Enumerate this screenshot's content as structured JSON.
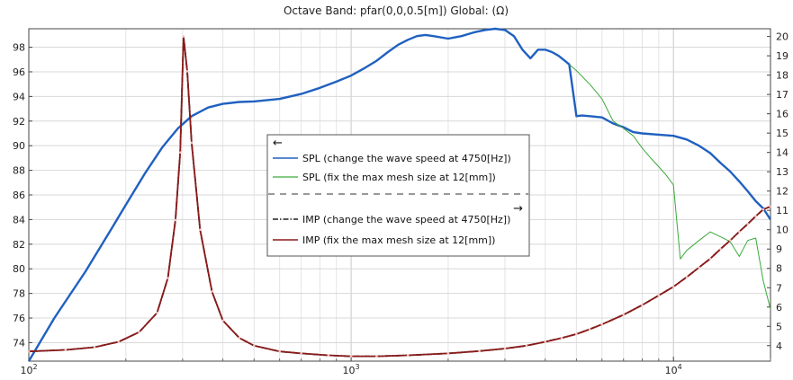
{
  "chart_data": {
    "type": "line",
    "title": "Octave Band: pfar(0,0,0.5[m])  Global:  (Ω)",
    "x_scale": "log",
    "xlim": [
      100,
      20000
    ],
    "x_ticks": [
      {
        "value": 100,
        "base": "10",
        "exp": "2"
      },
      {
        "value": 1000,
        "base": "10",
        "exp": "3"
      },
      {
        "value": 10000,
        "base": "10",
        "exp": "4"
      }
    ],
    "y_left": {
      "lim": [
        72.5,
        99.5
      ],
      "ticks": [
        74,
        76,
        78,
        80,
        82,
        84,
        86,
        88,
        90,
        92,
        94,
        96,
        98
      ]
    },
    "y_right": {
      "lim": [
        3.2,
        20.4
      ],
      "ticks": [
        4,
        5,
        6,
        7,
        8,
        9,
        10,
        11,
        12,
        13,
        14,
        15,
        16,
        17,
        18,
        19,
        20
      ]
    },
    "grid": true,
    "legend": {
      "placement": "center",
      "arrow_left": "←",
      "arrow_right": "→",
      "entries": [
        "SPL (change the wave speed at 4750[Hz])",
        "SPL (fix the max mesh size at 12[mm])",
        "IMP  (change the wave speed at 4750[Hz])",
        "IMP (fix the max mesh size at 12[mm])"
      ]
    },
    "series": [
      {
        "name": "SPL (change the wave speed at 4750[Hz])",
        "axis": "left",
        "color": "#2060c0",
        "style": "solid",
        "x": [
          100,
          120,
          150,
          180,
          200,
          230,
          260,
          290,
          320,
          360,
          400,
          450,
          500,
          600,
          700,
          800,
          900,
          1000,
          1100,
          1200,
          1300,
          1400,
          1500,
          1600,
          1700,
          1800,
          2000,
          2200,
          2400,
          2600,
          2800,
          3000,
          3200,
          3400,
          3600,
          3800,
          4000,
          4200,
          4400,
          4600,
          4750,
          5000,
          5200,
          5500,
          6000,
          6500,
          7000,
          7500,
          8000,
          9000,
          10000,
          11000,
          12000,
          13000,
          14000,
          15000,
          16000,
          17000,
          18000,
          19000,
          20000
        ],
        "y": [
          72.5,
          76.0,
          79.8,
          83.2,
          85.2,
          87.8,
          89.9,
          91.4,
          92.4,
          93.1,
          93.4,
          93.55,
          93.6,
          93.8,
          94.2,
          94.7,
          95.2,
          95.7,
          96.3,
          96.9,
          97.6,
          98.2,
          98.6,
          98.9,
          99.0,
          98.9,
          98.7,
          98.9,
          99.2,
          99.4,
          99.5,
          99.4,
          98.9,
          97.8,
          97.1,
          97.8,
          97.8,
          97.6,
          97.3,
          96.9,
          96.6,
          92.4,
          92.45,
          92.4,
          92.3,
          91.8,
          91.5,
          91.1,
          91.0,
          90.9,
          90.8,
          90.5,
          90.0,
          89.4,
          88.6,
          87.9,
          87.1,
          86.3,
          85.5,
          84.9,
          84.0
        ]
      },
      {
        "name": "SPL (fix the max mesh size at 12[mm])",
        "axis": "left",
        "color": "#3aaa3a",
        "style": "solid",
        "x": [
          4750,
          5000,
          5500,
          6000,
          6500,
          7000,
          7500,
          8000,
          8500,
          9000,
          9500,
          10000,
          10500,
          11000,
          12000,
          13000,
          14000,
          15000,
          16000,
          17000,
          18000,
          19000,
          20000
        ],
        "y": [
          96.6,
          96.1,
          95.0,
          93.8,
          92.0,
          91.4,
          90.8,
          89.8,
          89.0,
          88.3,
          87.6,
          86.8,
          80.8,
          81.5,
          82.3,
          83.0,
          82.6,
          82.2,
          81.0,
          82.3,
          82.5,
          79.0,
          76.7
        ]
      },
      {
        "name": "IMP  (change the wave speed at 4750[Hz])",
        "axis": "right",
        "color": "#1e1e1e",
        "style": "dashdot",
        "x": [
          100,
          130,
          160,
          190,
          220,
          250,
          270,
          285,
          295,
          302,
          310,
          320,
          340,
          370,
          400,
          450,
          500,
          600,
          700,
          850,
          1000,
          1200,
          1500,
          2000,
          2500,
          3000,
          3500,
          4000,
          4500,
          5000,
          5500,
          6000,
          7000,
          8000,
          9000,
          10000,
          11000,
          12000,
          13000,
          14000,
          15000,
          16000,
          17000,
          18000,
          19000,
          20000
        ],
        "y": [
          3.7,
          3.78,
          3.92,
          4.2,
          4.7,
          5.7,
          7.5,
          10.5,
          14.0,
          20.0,
          18.2,
          14.5,
          10.0,
          6.8,
          5.3,
          4.4,
          4.0,
          3.7,
          3.6,
          3.5,
          3.45,
          3.45,
          3.5,
          3.6,
          3.72,
          3.85,
          4.0,
          4.2,
          4.4,
          4.6,
          4.85,
          5.1,
          5.6,
          6.1,
          6.6,
          7.05,
          7.55,
          8.05,
          8.5,
          9.0,
          9.45,
          9.9,
          10.3,
          10.7,
          11.05,
          11.2
        ]
      },
      {
        "name": "IMP (fix the max mesh size at 12[mm])",
        "axis": "right",
        "color": "#8b1a1a",
        "style": "solid",
        "x": [
          100,
          130,
          160,
          190,
          220,
          250,
          270,
          285,
          295,
          302,
          310,
          320,
          340,
          370,
          400,
          450,
          500,
          600,
          700,
          850,
          1000,
          1200,
          1500,
          2000,
          2500,
          3000,
          3500,
          4000,
          4500,
          5000,
          5500,
          6000,
          7000,
          8000,
          9000,
          10000,
          11000,
          12000,
          13000,
          14000,
          15000,
          16000,
          17000,
          18000,
          19000,
          20000
        ],
        "y": [
          3.7,
          3.78,
          3.92,
          4.2,
          4.7,
          5.7,
          7.5,
          10.5,
          14.0,
          20.0,
          18.2,
          14.5,
          10.0,
          6.8,
          5.3,
          4.4,
          4.0,
          3.7,
          3.6,
          3.5,
          3.45,
          3.45,
          3.5,
          3.6,
          3.72,
          3.85,
          4.0,
          4.2,
          4.4,
          4.6,
          4.85,
          5.1,
          5.6,
          6.1,
          6.6,
          7.05,
          7.55,
          8.05,
          8.5,
          9.0,
          9.45,
          9.9,
          10.3,
          10.7,
          11.05,
          11.2
        ]
      }
    ]
  }
}
